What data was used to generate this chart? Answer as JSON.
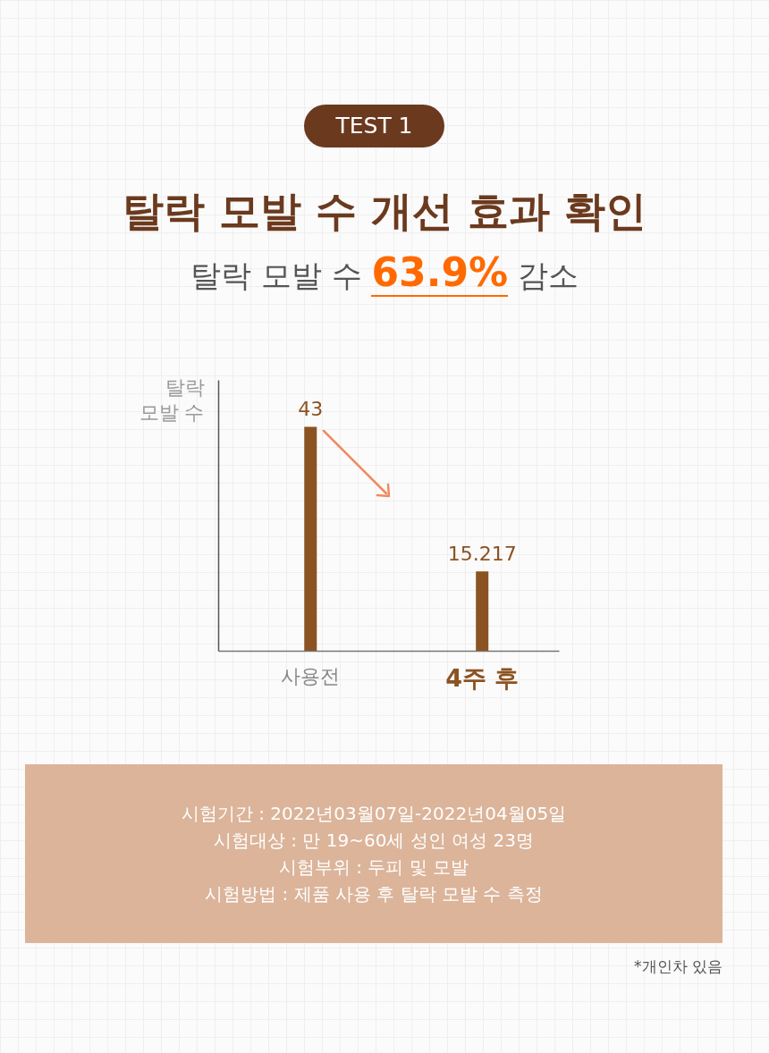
{
  "chart_data": {
    "type": "bar",
    "title": "탈락 모발 수 개선 효과 확인",
    "subtitle": "탈락 모발 수 63.9% 감소",
    "ylabel": "탈락 모발 수",
    "categories": [
      "사용전",
      "4주 후"
    ],
    "values": [
      43,
      15.217
    ],
    "color": "#8b5322",
    "ylim": [
      0,
      52
    ],
    "data_labels": true,
    "tick_labels": "x",
    "annotations": [
      "TEST 1",
      "시험기간 : 2022년03월07일-2022년04월05일",
      "시험대상 : 만 19~60세 성인 여성 23명",
      "시험부위 : 두피 및 모발",
      "시험방법 : 제품 사용 후 탈락 모발 수 측정",
      "*개인차 있음"
    ]
  }
}
